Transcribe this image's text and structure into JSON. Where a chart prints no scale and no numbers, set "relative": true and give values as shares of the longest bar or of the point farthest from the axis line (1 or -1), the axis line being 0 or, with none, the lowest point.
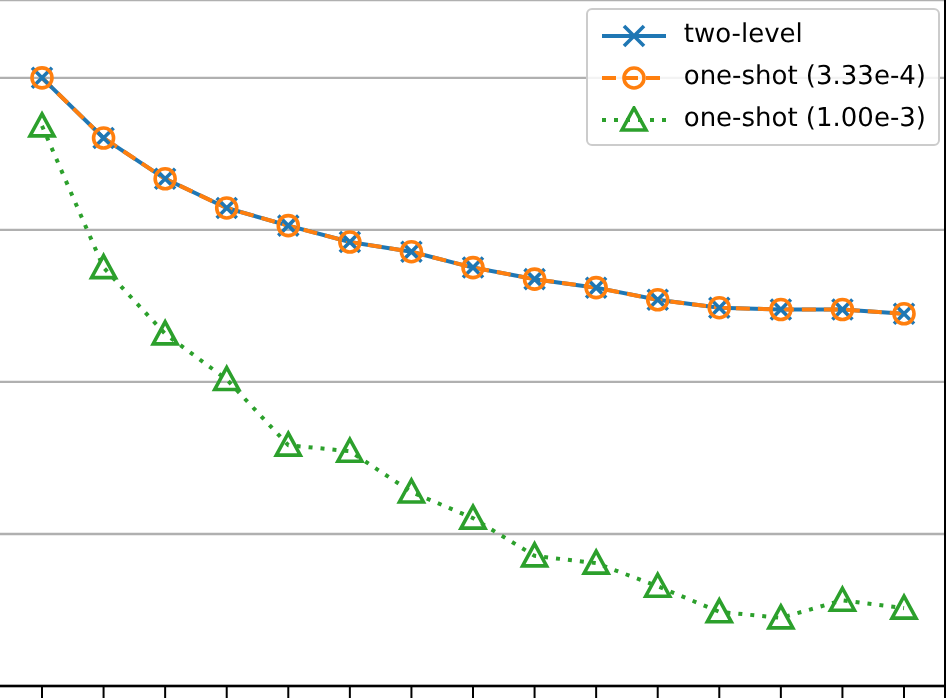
{
  "chart_data": {
    "type": "line",
    "relative": true,
    "categories": [
      null,
      null,
      null,
      null,
      null,
      null,
      null,
      null,
      null,
      null,
      null,
      null,
      null,
      null,
      null
    ],
    "grid": "y",
    "legend": "top right",
    "series": [
      {
        "name": "two-level",
        "color": "#1f77b4",
        "marker": "cross",
        "line_style": "solid",
        "values": [
          1,
          0.901,
          0.834,
          0.786,
          0.757,
          0.73,
          0.714,
          0.688,
          0.669,
          0.655,
          0.635,
          0.622,
          0.619,
          0.619,
          0.612
        ]
      },
      {
        "name": "one-shot (3.33e-4)",
        "color": "#ff7f0e",
        "marker": "circle",
        "line_style": "dashed",
        "values": [
          1,
          0.901,
          0.834,
          0.786,
          0.757,
          0.73,
          0.714,
          0.688,
          0.669,
          0.655,
          0.635,
          0.622,
          0.619,
          0.619,
          0.612
        ]
      },
      {
        "name": "one-shot (1.00e-3)",
        "color": "#2ca02c",
        "marker": "triangle",
        "line_style": "dotted",
        "values": [
          0.921,
          0.688,
          0.579,
          0.504,
          0.396,
          0.386,
          0.319,
          0.276,
          0.214,
          0.202,
          0.164,
          0.122,
          0.112,
          0.141,
          0.128
        ]
      }
    ]
  }
}
